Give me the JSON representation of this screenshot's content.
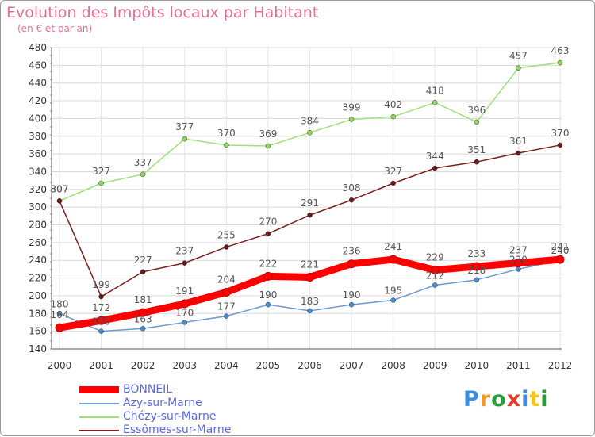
{
  "chart_data": {
    "type": "line",
    "title": "Evolution des Impôts locaux par Habitant",
    "subtitle": "(en € et par an)",
    "x": [
      "2000",
      "2001",
      "2002",
      "2003",
      "2004",
      "2005",
      "2006",
      "2007",
      "2008",
      "2009",
      "2010",
      "2011",
      "2012"
    ],
    "ylim": [
      140,
      480
    ],
    "yticks": [
      140,
      160,
      180,
      200,
      220,
      240,
      260,
      280,
      300,
      320,
      340,
      360,
      380,
      400,
      420,
      440,
      460,
      480
    ],
    "grid": true,
    "legend_position": "bottom-left",
    "series": [
      {
        "name": "BONNEIL",
        "color": "#ff0000",
        "values": [
          164,
          172,
          181,
          191,
          204,
          222,
          221,
          236,
          241,
          229,
          233,
          237,
          241
        ]
      },
      {
        "name": "Azy-sur-Marne",
        "color": "#6b9bd2",
        "values": [
          180,
          160,
          163,
          170,
          177,
          190,
          183,
          190,
          195,
          212,
          218,
          230,
          240
        ]
      },
      {
        "name": "Chézy-sur-Marne",
        "color": "#9fe07a",
        "values": [
          307,
          327,
          337,
          377,
          370,
          369,
          384,
          399,
          402,
          418,
          396,
          457,
          463
        ]
      },
      {
        "name": "Essômes-sur-Marne",
        "color": "#7a2020",
        "values": [
          307,
          199,
          227,
          237,
          255,
          270,
          291,
          308,
          327,
          344,
          351,
          361,
          370
        ]
      }
    ]
  }
}
